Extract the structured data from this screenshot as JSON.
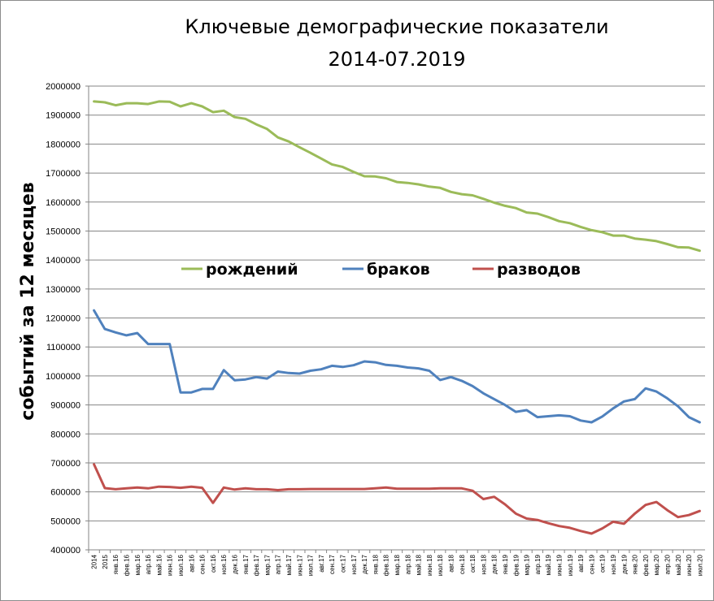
{
  "chart_data": {
    "type": "line",
    "title_line1": "Ключевые демографические показатели",
    "title_line2": "2014-07.2019",
    "ylabel": "событий за 12  месяцев",
    "xlabel": "",
    "ylim": [
      400000,
      2000000
    ],
    "yticks": [
      "400000",
      "500000",
      "600000",
      "700000",
      "800000",
      "900000",
      "1000000",
      "1100000",
      "1200000",
      "1300000",
      "1400000",
      "1500000",
      "1600000",
      "1700000",
      "1800000",
      "1900000",
      "2000000"
    ],
    "grid": "horizontal",
    "legend_position": "center",
    "categories": [
      "2014",
      "2015",
      "янв.16",
      "фев.16",
      "мар.16",
      "апр.16",
      "май.16",
      "июн.16",
      "июл.16",
      "авг.16",
      "сен.16",
      "окт.16",
      "ноя.16",
      "дек.16",
      "янв.17",
      "фев.17",
      "мар.17",
      "апр.17",
      "май.17",
      "июн.17",
      "июл.17",
      "авг.17",
      "сен.17",
      "окт.17",
      "ноя.17",
      "дек.17",
      "янв.18",
      "фев.18",
      "мар.18",
      "апр.18",
      "май.18",
      "июн.18",
      "июл.18",
      "авг.18",
      "сен.18",
      "окт.18",
      "ноя.18",
      "дек.18",
      "янв.19",
      "фев.19",
      "мар.19",
      "апр.19",
      "май.19",
      "июн.19",
      "июл.19",
      "авг.19",
      "сен.19",
      "окт.19",
      "ноя.19",
      "дек.19",
      "янв.20",
      "фев.20",
      "мар.20",
      "апр.20",
      "май.20",
      "июн.20",
      "июл.20"
    ],
    "series": [
      {
        "name": "рождений",
        "color": "#9bbb59",
        "values": [
          1947000,
          1944000,
          1934000,
          1941000,
          1941000,
          1938000,
          1947000,
          1946000,
          1930000,
          1941000,
          1930000,
          1910000,
          1915000,
          1893000,
          1887000,
          1868000,
          1852000,
          1823000,
          1809000,
          1789000,
          1770000,
          1750000,
          1730000,
          1721000,
          1704000,
          1689000,
          1688000,
          1682000,
          1669000,
          1666000,
          1661000,
          1653000,
          1649000,
          1635000,
          1627000,
          1623000,
          1611000,
          1598000,
          1587000,
          1579000,
          1564000,
          1560000,
          1548000,
          1534000,
          1527000,
          1514000,
          1503000,
          1496000,
          1484000,
          1484000,
          1474000,
          1470000,
          1465000,
          1455000,
          1444000,
          1443000,
          1432000
        ]
      },
      {
        "name": "браков",
        "color": "#4f81bd",
        "values": [
          1226000,
          1162000,
          1150000,
          1140000,
          1148000,
          1110000,
          1110000,
          1110000,
          943000,
          943000,
          955000,
          955000,
          1020000,
          985000,
          988000,
          996000,
          991000,
          1015000,
          1010000,
          1008000,
          1018000,
          1023000,
          1035000,
          1031000,
          1037000,
          1050000,
          1047000,
          1038000,
          1035000,
          1029000,
          1026000,
          1018000,
          986000,
          996000,
          983000,
          965000,
          940000,
          920000,
          900000,
          876000,
          882000,
          858000,
          861000,
          864000,
          861000,
          846000,
          840000,
          860000,
          888000,
          912000,
          920000,
          957000,
          946000,
          923000,
          895000,
          858000,
          840000
        ]
      },
      {
        "name": "разводов",
        "color": "#c0504d",
        "values": [
          695000,
          613000,
          609000,
          612000,
          615000,
          612000,
          618000,
          617000,
          614000,
          618000,
          614000,
          562000,
          615000,
          608000,
          612000,
          609000,
          609000,
          606000,
          609000,
          609000,
          610000,
          610000,
          610000,
          610000,
          610000,
          610000,
          612000,
          615000,
          611000,
          611000,
          611000,
          611000,
          612000,
          612000,
          612000,
          604000,
          575000,
          583000,
          557000,
          525000,
          508000,
          503000,
          492000,
          482000,
          476000,
          465000,
          456000,
          474000,
          497000,
          490000,
          525000,
          555000,
          565000,
          537000,
          513000,
          520000,
          534000
        ]
      }
    ]
  }
}
